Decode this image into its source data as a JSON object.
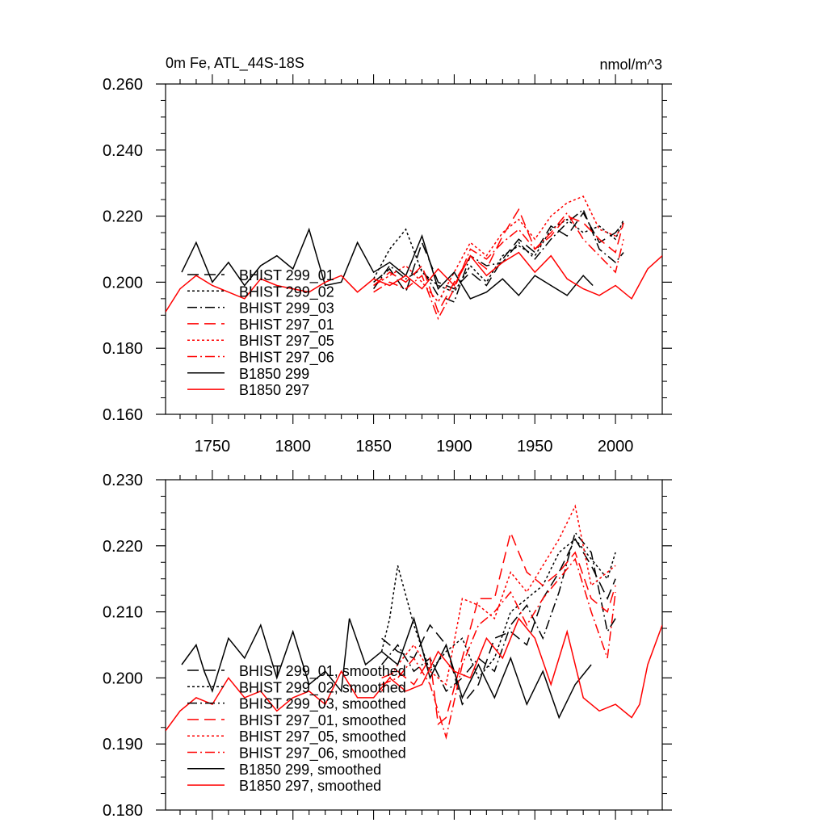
{
  "figure": {
    "title": "0m Fe, ATL_44S-18S",
    "units": "nmol/m^3"
  },
  "chart_data": [
    {
      "type": "line",
      "title": "0m Fe, ATL_44S-18S",
      "units_label": "nmol/m^3",
      "xlabel": "",
      "ylabel": "",
      "xlim": [
        1721,
        2029
      ],
      "ylim": [
        0.16,
        0.26
      ],
      "x_ticks": [
        1750,
        1800,
        1850,
        1900,
        1950,
        2000
      ],
      "x_tick_labels": [
        "1750",
        "1800",
        "1850",
        "1900",
        "1950",
        "2000"
      ],
      "y_ticks": [
        0.16,
        0.18,
        0.2,
        0.22,
        0.24,
        0.26
      ],
      "y_tick_labels": [
        "0.160",
        "0.180",
        "0.200",
        "0.220",
        "0.240",
        "0.260"
      ],
      "grid": false,
      "legend": "bottom-left",
      "series": [
        {
          "name": "BHIST 299_01",
          "color": "#000000",
          "style": "long-dash",
          "x": [
            1850,
            1860,
            1870,
            1880,
            1890,
            1900,
            1910,
            1920,
            1930,
            1940,
            1950,
            1960,
            1970,
            1980,
            1990,
            2000,
            2005
          ],
          "y": [
            0.2,
            0.204,
            0.197,
            0.212,
            0.2,
            0.198,
            0.203,
            0.199,
            0.207,
            0.213,
            0.209,
            0.217,
            0.214,
            0.221,
            0.212,
            0.215,
            0.218
          ]
        },
        {
          "name": "BHIST 299_02",
          "color": "#000000",
          "style": "dotted",
          "x": [
            1850,
            1860,
            1870,
            1880,
            1890,
            1900,
            1910,
            1920,
            1930,
            1940,
            1950,
            1960,
            1970,
            1980,
            1990,
            2000,
            2005
          ],
          "y": [
            0.201,
            0.21,
            0.216,
            0.203,
            0.199,
            0.197,
            0.205,
            0.2,
            0.208,
            0.211,
            0.208,
            0.216,
            0.219,
            0.215,
            0.217,
            0.213,
            0.219
          ]
        },
        {
          "name": "BHIST 299_03",
          "color": "#000000",
          "style": "dash-dot",
          "x": [
            1850,
            1860,
            1870,
            1880,
            1890,
            1900,
            1910,
            1920,
            1930,
            1940,
            1950,
            1960,
            1970,
            1980,
            1990,
            2000,
            2005
          ],
          "y": [
            0.198,
            0.205,
            0.201,
            0.204,
            0.196,
            0.194,
            0.208,
            0.205,
            0.206,
            0.212,
            0.207,
            0.213,
            0.218,
            0.222,
            0.21,
            0.206,
            0.209
          ]
        },
        {
          "name": "BHIST 297_01",
          "color": "#ff0000",
          "style": "long-dash",
          "x": [
            1850,
            1860,
            1870,
            1880,
            1890,
            1900,
            1910,
            1920,
            1930,
            1940,
            1950,
            1960,
            1970,
            1980,
            1990,
            2000,
            2005
          ],
          "y": [
            0.199,
            0.203,
            0.2,
            0.205,
            0.191,
            0.2,
            0.208,
            0.204,
            0.214,
            0.222,
            0.21,
            0.214,
            0.22,
            0.218,
            0.213,
            0.209,
            0.218
          ]
        },
        {
          "name": "BHIST 297_05",
          "color": "#ff0000",
          "style": "dotted",
          "x": [
            1850,
            1860,
            1870,
            1880,
            1890,
            1900,
            1910,
            1920,
            1930,
            1940,
            1950,
            1960,
            1970,
            1980,
            1990,
            2000,
            2005
          ],
          "y": [
            0.199,
            0.202,
            0.205,
            0.2,
            0.194,
            0.203,
            0.212,
            0.208,
            0.215,
            0.219,
            0.213,
            0.22,
            0.224,
            0.226,
            0.216,
            0.214,
            0.217
          ]
        },
        {
          "name": "BHIST 297_06",
          "color": "#ff0000",
          "style": "dash-dot",
          "x": [
            1850,
            1860,
            1870,
            1880,
            1890,
            1900,
            1910,
            1920,
            1930,
            1940,
            1950,
            1960,
            1970,
            1980,
            1990,
            2000,
            2005
          ],
          "y": [
            0.197,
            0.2,
            0.198,
            0.202,
            0.189,
            0.198,
            0.21,
            0.207,
            0.212,
            0.216,
            0.21,
            0.215,
            0.221,
            0.213,
            0.208,
            0.203,
            0.213
          ]
        },
        {
          "name": "B1850 299",
          "color": "#000000",
          "style": "solid",
          "x": [
            1731,
            1740,
            1750,
            1760,
            1770,
            1780,
            1790,
            1800,
            1810,
            1820,
            1830,
            1840,
            1850,
            1860,
            1870,
            1880,
            1890,
            1900,
            1910,
            1920,
            1930,
            1940,
            1950,
            1960,
            1970,
            1980,
            1986
          ],
          "y": [
            0.203,
            0.212,
            0.2,
            0.206,
            0.199,
            0.205,
            0.208,
            0.204,
            0.216,
            0.199,
            0.2,
            0.212,
            0.203,
            0.206,
            0.202,
            0.214,
            0.198,
            0.203,
            0.195,
            0.197,
            0.201,
            0.196,
            0.202,
            0.199,
            0.196,
            0.202,
            0.199
          ]
        },
        {
          "name": "B1850 297",
          "color": "#ff0000",
          "style": "solid",
          "x": [
            1721,
            1730,
            1740,
            1750,
            1760,
            1770,
            1780,
            1790,
            1800,
            1810,
            1820,
            1830,
            1840,
            1850,
            1860,
            1870,
            1880,
            1890,
            1900,
            1910,
            1920,
            1930,
            1940,
            1950,
            1960,
            1970,
            1980,
            1990,
            2000,
            2010,
            2020,
            2029
          ],
          "y": [
            0.191,
            0.198,
            0.202,
            0.199,
            0.197,
            0.195,
            0.201,
            0.199,
            0.198,
            0.197,
            0.2,
            0.202,
            0.197,
            0.201,
            0.199,
            0.202,
            0.198,
            0.204,
            0.199,
            0.208,
            0.202,
            0.206,
            0.209,
            0.203,
            0.208,
            0.201,
            0.198,
            0.196,
            0.199,
            0.195,
            0.204,
            0.208
          ]
        }
      ]
    },
    {
      "type": "line",
      "title": "",
      "xlabel": "",
      "ylabel": "",
      "xlim": [
        1721,
        2029
      ],
      "ylim": [
        0.18,
        0.23
      ],
      "x_ticks": [
        1750,
        1800,
        1850,
        1900,
        1950,
        2000
      ],
      "y_ticks": [
        0.18,
        0.19,
        0.2,
        0.21,
        0.22,
        0.23
      ],
      "y_tick_labels": [
        "0.180",
        "0.190",
        "0.200",
        "0.210",
        "0.220",
        "0.230"
      ],
      "grid": false,
      "legend": "bottom-left",
      "series": [
        {
          "name": "BHIST 299_01, smoothed",
          "color": "#000000",
          "style": "long-dash",
          "x": [
            1855,
            1865,
            1875,
            1885,
            1895,
            1905,
            1915,
            1925,
            1935,
            1945,
            1955,
            1965,
            1975,
            1985,
            1995,
            2000
          ],
          "y": [
            0.206,
            0.204,
            0.203,
            0.208,
            0.205,
            0.196,
            0.199,
            0.206,
            0.207,
            0.205,
            0.212,
            0.216,
            0.221,
            0.217,
            0.212,
            0.215
          ]
        },
        {
          "name": "BHIST 299_02, smoothed",
          "color": "#000000",
          "style": "dotted",
          "x": [
            1855,
            1860,
            1865,
            1875,
            1885,
            1895,
            1905,
            1915,
            1925,
            1935,
            1945,
            1955,
            1965,
            1975,
            1985,
            1995,
            2000
          ],
          "y": [
            0.204,
            0.209,
            0.217,
            0.208,
            0.201,
            0.204,
            0.206,
            0.2,
            0.203,
            0.21,
            0.212,
            0.214,
            0.219,
            0.221,
            0.218,
            0.215,
            0.219
          ]
        },
        {
          "name": "BHIST 299_03, smoothed",
          "color": "#000000",
          "style": "dash-dot",
          "x": [
            1855,
            1865,
            1875,
            1885,
            1895,
            1905,
            1915,
            1925,
            1935,
            1945,
            1955,
            1965,
            1975,
            1985,
            1995,
            2000
          ],
          "y": [
            0.202,
            0.205,
            0.201,
            0.203,
            0.198,
            0.2,
            0.203,
            0.201,
            0.208,
            0.211,
            0.206,
            0.213,
            0.222,
            0.219,
            0.207,
            0.209
          ]
        },
        {
          "name": "BHIST 297_01, smoothed",
          "color": "#ff0000",
          "style": "long-dash",
          "x": [
            1855,
            1865,
            1875,
            1885,
            1890,
            1895,
            1905,
            1915,
            1925,
            1935,
            1945,
            1955,
            1965,
            1975,
            1985,
            1995,
            2000
          ],
          "y": [
            0.2,
            0.201,
            0.199,
            0.203,
            0.193,
            0.194,
            0.203,
            0.212,
            0.212,
            0.222,
            0.216,
            0.214,
            0.216,
            0.219,
            0.212,
            0.21,
            0.214
          ]
        },
        {
          "name": "BHIST 297_05, smoothed",
          "color": "#ff0000",
          "style": "dotted",
          "x": [
            1855,
            1865,
            1875,
            1885,
            1895,
            1905,
            1915,
            1925,
            1935,
            1945,
            1955,
            1965,
            1975,
            1985,
            1995,
            2000
          ],
          "y": [
            0.198,
            0.202,
            0.205,
            0.201,
            0.199,
            0.212,
            0.211,
            0.209,
            0.216,
            0.213,
            0.217,
            0.221,
            0.226,
            0.214,
            0.216,
            0.217
          ]
        },
        {
          "name": "BHIST 297_06, smoothed",
          "color": "#ff0000",
          "style": "dash-dot",
          "x": [
            1855,
            1865,
            1875,
            1885,
            1895,
            1905,
            1915,
            1925,
            1935,
            1945,
            1955,
            1965,
            1975,
            1985,
            1995,
            2000
          ],
          "y": [
            0.199,
            0.2,
            0.203,
            0.199,
            0.191,
            0.202,
            0.208,
            0.21,
            0.213,
            0.208,
            0.212,
            0.215,
            0.218,
            0.21,
            0.203,
            0.213
          ]
        },
        {
          "name": "B1850 299, smoothed",
          "color": "#000000",
          "style": "solid",
          "x": [
            1731,
            1740,
            1745,
            1750,
            1760,
            1770,
            1780,
            1790,
            1800,
            1810,
            1820,
            1830,
            1835,
            1845,
            1855,
            1865,
            1875,
            1885,
            1895,
            1905,
            1915,
            1925,
            1935,
            1945,
            1955,
            1965,
            1975,
            1985
          ],
          "y": [
            0.202,
            0.205,
            0.201,
            0.198,
            0.206,
            0.203,
            0.208,
            0.2,
            0.207,
            0.199,
            0.201,
            0.198,
            0.209,
            0.202,
            0.204,
            0.202,
            0.209,
            0.2,
            0.205,
            0.197,
            0.202,
            0.197,
            0.203,
            0.196,
            0.201,
            0.194,
            0.199,
            0.202
          ]
        },
        {
          "name": "B1850 297, smoothed",
          "color": "#ff0000",
          "style": "solid",
          "x": [
            1721,
            1730,
            1740,
            1750,
            1760,
            1770,
            1780,
            1790,
            1800,
            1810,
            1820,
            1830,
            1840,
            1850,
            1860,
            1870,
            1880,
            1890,
            1900,
            1910,
            1920,
            1930,
            1940,
            1950,
            1960,
            1970,
            1980,
            1990,
            2000,
            2010,
            2015,
            2020,
            2029
          ],
          "y": [
            0.192,
            0.195,
            0.197,
            0.196,
            0.2,
            0.197,
            0.198,
            0.195,
            0.197,
            0.198,
            0.196,
            0.201,
            0.197,
            0.197,
            0.2,
            0.198,
            0.199,
            0.204,
            0.201,
            0.2,
            0.206,
            0.203,
            0.209,
            0.206,
            0.199,
            0.207,
            0.197,
            0.195,
            0.196,
            0.194,
            0.196,
            0.202,
            0.208
          ]
        }
      ]
    }
  ]
}
